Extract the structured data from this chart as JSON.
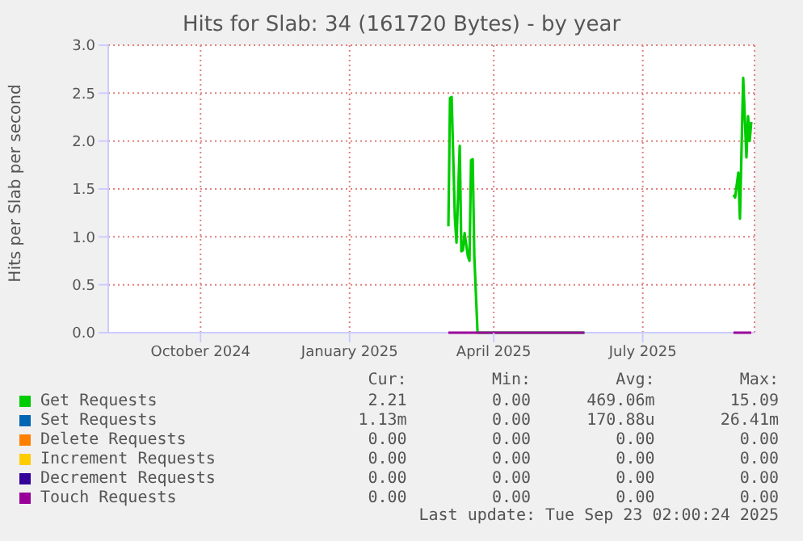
{
  "chart_data": {
    "type": "line",
    "title": "Hits for Slab: 34 (161720 Bytes) - by year",
    "ylabel": "Hits per Slab per second",
    "x": [
      "2025-03-20",
      "2025-03-21",
      "2025-03-22",
      "2025-03-24",
      "2025-03-25",
      "2025-03-27",
      "2025-03-28",
      "2025-03-29",
      "2025-03-30",
      "2025-04-01",
      "2025-04-02",
      "2025-04-03",
      "2025-04-04",
      "2025-04-05",
      "2025-04-07",
      "2025-06-12",
      "2025-06-13",
      "2025-09-12",
      "2025-09-13",
      "2025-09-15",
      "2025-09-16",
      "2025-09-18",
      "2025-09-20",
      "2025-09-21",
      "2025-09-22",
      "2025-09-23"
    ],
    "series": [
      {
        "name": "Get Requests",
        "color": "#00cc00",
        "values": [
          1.11,
          2.45,
          2.46,
          1.2,
          0.94,
          1.95,
          0.85,
          0.86,
          1.04,
          0.8,
          0.75,
          1.8,
          1.81,
          0.8,
          0,
          0,
          null,
          1.44,
          1.41,
          1.67,
          1.19,
          2.66,
          1.83,
          2.26,
          2.0,
          2.2
        ]
      },
      {
        "name": "Set Requests",
        "color": "#0066b3",
        "values": [
          null,
          null,
          null,
          null,
          null,
          null,
          null,
          null,
          null,
          null,
          null,
          null,
          null,
          null,
          null,
          null,
          null,
          null,
          null,
          null,
          null,
          null,
          null,
          null,
          null,
          null
        ]
      },
      {
        "name": "Delete Requests",
        "color": "#ff8000",
        "values": [
          null,
          null,
          null,
          null,
          null,
          null,
          null,
          null,
          null,
          null,
          null,
          null,
          null,
          null,
          null,
          null,
          null,
          null,
          null,
          null,
          null,
          null,
          null,
          null,
          null,
          null
        ]
      },
      {
        "name": "Increment Requests",
        "color": "#ffcc00",
        "values": [
          null,
          null,
          null,
          null,
          null,
          null,
          null,
          null,
          null,
          null,
          null,
          null,
          null,
          null,
          null,
          null,
          null,
          null,
          null,
          null,
          null,
          null,
          null,
          null,
          null,
          null
        ]
      },
      {
        "name": "Decrement Requests",
        "color": "#330099",
        "values": [
          null,
          null,
          null,
          null,
          null,
          null,
          null,
          null,
          null,
          null,
          null,
          null,
          null,
          null,
          null,
          null,
          null,
          null,
          null,
          null,
          null,
          null,
          null,
          null,
          null,
          null
        ]
      },
      {
        "name": "Touch Requests",
        "color": "#990099",
        "values": [
          0,
          0,
          0,
          0,
          0,
          0,
          0,
          0,
          0,
          0,
          0,
          0,
          0,
          0,
          0,
          0,
          null,
          0,
          0,
          0,
          0,
          0,
          0,
          0,
          0,
          0
        ]
      }
    ],
    "xlim": [
      "2024-08-22",
      "2025-09-25"
    ],
    "xticks": [
      {
        "value": "2024-10-18",
        "label": "October 2024"
      },
      {
        "value": "2025-01-18",
        "label": "January 2025"
      },
      {
        "value": "2025-04-17",
        "label": "April 2025"
      },
      {
        "value": "2025-07-18",
        "label": "July 2025"
      }
    ],
    "ylim": [
      0,
      3
    ],
    "yticks": [
      {
        "value": 0,
        "label": "0.0"
      },
      {
        "value": 0.5,
        "label": "0.5"
      },
      {
        "value": 1,
        "label": "1.0"
      },
      {
        "value": 1.5,
        "label": "1.5"
      },
      {
        "value": 2,
        "label": "2.0"
      },
      {
        "value": 2.5,
        "label": "2.5"
      },
      {
        "value": 3,
        "label": "3.0"
      }
    ],
    "grid": true,
    "legend": "bottom",
    "marker": "none",
    "line_style": "solid",
    "annotations": [
      "Cur:",
      "Min:",
      "Avg:",
      "Max:",
      "2.21",
      "0.00",
      "469.06m",
      "15.09",
      "1.13m",
      "0.00",
      "170.88u",
      "26.41m",
      "0.00",
      "0.00",
      "0.00",
      "0.00",
      "0.00",
      "0.00",
      "0.00",
      "0.00",
      "0.00",
      "0.00",
      "0.00",
      "0.00",
      "0.00",
      "0.00",
      "0.00",
      "0.00",
      "Last update: Tue Sep 23 02:00:24 2025"
    ]
  }
}
